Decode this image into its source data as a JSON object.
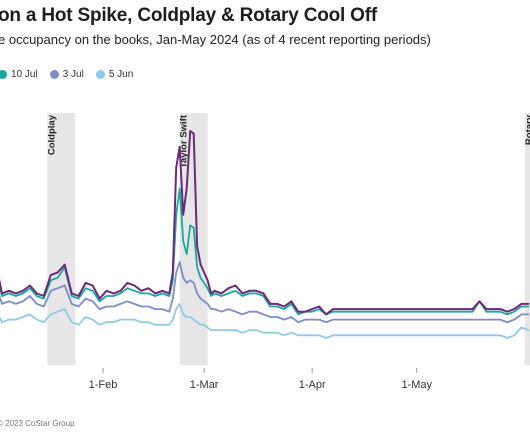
{
  "title": "on a Hot Spike, Coldplay & Rotary Cool Off",
  "subtitle": "e occupancy on the books, Jan-May 2024 (as of 4 recent reporting periods)",
  "source": "© 2023 CoStar Group",
  "chart_data": {
    "type": "line",
    "ylim": [
      0,
      100
    ],
    "xlabel": "",
    "ylabel": "",
    "grid": false,
    "legend_position": "top-left",
    "x_ticks": [
      {
        "day": 32,
        "label": "1-Feb"
      },
      {
        "day": 61,
        "label": "1-Mar"
      },
      {
        "day": 92,
        "label": "1-Apr"
      },
      {
        "day": 122,
        "label": "1-May"
      }
    ],
    "events": [
      {
        "label": "Coldplay",
        "start": 16,
        "end": 24
      },
      {
        "label": "Taylor Swift",
        "start": 54,
        "end": 62
      },
      {
        "label": "Rotary",
        "start": 153,
        "end": 160
      }
    ],
    "x": [
      1,
      3,
      5,
      7,
      9,
      11,
      13,
      15,
      17,
      19,
      21,
      23,
      25,
      27,
      29,
      31,
      33,
      35,
      37,
      39,
      41,
      43,
      45,
      47,
      49,
      51,
      52,
      53,
      54,
      55,
      56,
      57,
      58,
      59,
      60,
      61,
      62,
      63,
      64,
      66,
      68,
      70,
      72,
      74,
      76,
      78,
      80,
      82,
      84,
      86,
      88,
      90,
      92,
      94,
      96,
      98,
      100,
      102,
      104,
      106,
      108,
      110,
      112,
      114,
      116,
      118,
      120,
      122,
      124,
      126,
      128,
      130,
      132,
      134,
      136,
      138,
      140,
      142,
      144,
      146,
      148,
      150,
      152,
      154
    ],
    "series": [
      {
        "name": "",
        "color": "#6b2a7a",
        "values": [
          43,
          30,
          31,
          30,
          31,
          33,
          30,
          29,
          37,
          38,
          41,
          30,
          29,
          34,
          33,
          28,
          31,
          30,
          31,
          34,
          33,
          31,
          32,
          30,
          31,
          30,
          38,
          78,
          86,
          60,
          70,
          92,
          91,
          48,
          41,
          38,
          35,
          30,
          31,
          30,
          32,
          33,
          30,
          31,
          31,
          30,
          26,
          26,
          25,
          27,
          23,
          23,
          24,
          25,
          22,
          24,
          24,
          24,
          24,
          24,
          24,
          24,
          24,
          24,
          24,
          24,
          24,
          24,
          24,
          24,
          24,
          24,
          24,
          24,
          24,
          24,
          27,
          24,
          24,
          24,
          23,
          24,
          26,
          26
        ]
      },
      {
        "name": "10 Jul",
        "color": "#1aa79c",
        "values": [
          40,
          29,
          30,
          29,
          30,
          32,
          29,
          28,
          35,
          36,
          40,
          29,
          28,
          32,
          31,
          27,
          29,
          29,
          30,
          32,
          31,
          30,
          30,
          29,
          30,
          29,
          35,
          60,
          70,
          50,
          45,
          56,
          55,
          40,
          36,
          34,
          32,
          29,
          30,
          29,
          30,
          31,
          29,
          30,
          30,
          29,
          25,
          25,
          24,
          26,
          22,
          23,
          23,
          24,
          22,
          23,
          23,
          23,
          23,
          23,
          23,
          23,
          23,
          23,
          23,
          23,
          23,
          23,
          23,
          23,
          23,
          23,
          23,
          23,
          23,
          23,
          27,
          23,
          23,
          23,
          22,
          23,
          25,
          25
        ]
      },
      {
        "name": "3 Jul",
        "color": "#7f8cc8",
        "values": [
          34,
          26,
          27,
          26,
          27,
          29,
          26,
          25,
          31,
          32,
          33,
          26,
          25,
          28,
          27,
          24,
          25,
          25,
          26,
          27,
          26,
          25,
          25,
          24,
          24,
          23,
          28,
          38,
          42,
          36,
          34,
          35,
          34,
          30,
          28,
          27,
          26,
          24,
          24,
          23,
          24,
          23,
          22,
          23,
          23,
          22,
          21,
          21,
          20,
          21,
          19,
          20,
          20,
          20,
          19,
          20,
          20,
          20,
          20,
          20,
          20,
          20,
          20,
          20,
          20,
          20,
          20,
          20,
          20,
          20,
          20,
          20,
          20,
          20,
          20,
          20,
          20,
          20,
          20,
          20,
          19,
          20,
          22,
          22
        ]
      },
      {
        "name": "5 Jun",
        "color": "#8fcbe6",
        "values": [
          24,
          19,
          20,
          20,
          21,
          22,
          20,
          19,
          22,
          23,
          24,
          19,
          18,
          21,
          20,
          18,
          19,
          19,
          20,
          20,
          20,
          19,
          19,
          18,
          18,
          18,
          20,
          24,
          26,
          22,
          21,
          21,
          20,
          19,
          18,
          18,
          17,
          16,
          16,
          16,
          16,
          16,
          15,
          16,
          16,
          15,
          15,
          15,
          14,
          15,
          14,
          14,
          14,
          14,
          13,
          14,
          14,
          14,
          14,
          14,
          14,
          14,
          14,
          14,
          14,
          14,
          14,
          14,
          14,
          14,
          14,
          14,
          14,
          14,
          14,
          14,
          14,
          14,
          14,
          14,
          13,
          14,
          17,
          16
        ]
      }
    ]
  }
}
